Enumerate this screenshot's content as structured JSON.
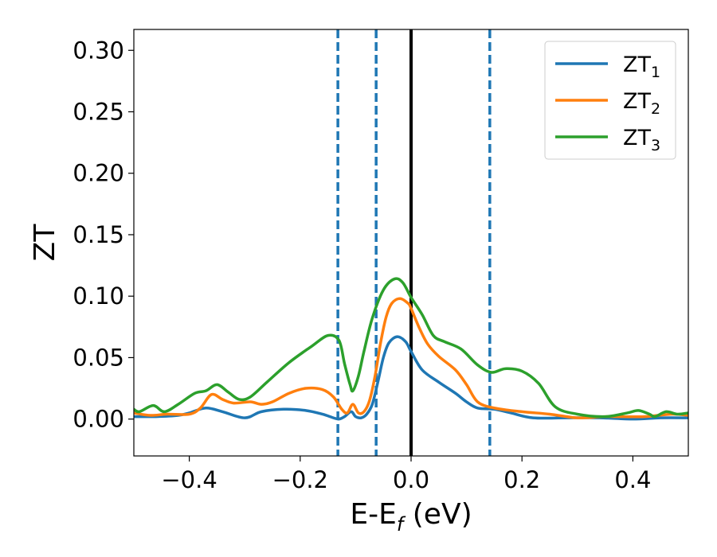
{
  "chart_data": {
    "type": "line",
    "xlabel_main": "E-E",
    "xlabel_sub": "f",
    "xlabel_unit": " (eV)",
    "ylabel": "ZT",
    "xlim": [
      -0.5,
      0.5
    ],
    "ylim": [
      -0.03,
      0.317
    ],
    "xticks": [
      -0.4,
      -0.2,
      0.0,
      0.2,
      0.4
    ],
    "xtick_labels": [
      "−0.4",
      "−0.2",
      "0.0",
      "0.2",
      "0.4"
    ],
    "yticks": [
      0.0,
      0.05,
      0.1,
      0.15,
      0.2,
      0.25,
      0.3
    ],
    "ytick_labels": [
      "0.00",
      "0.05",
      "0.10",
      "0.15",
      "0.20",
      "0.25",
      "0.30"
    ],
    "legend_position": "top-right",
    "vertical_lines": [
      {
        "x": -0.132,
        "style": "dashed",
        "color": "#1f77b4"
      },
      {
        "x": -0.063,
        "style": "dashed",
        "color": "#1f77b4"
      },
      {
        "x": 0.0,
        "style": "solid",
        "color": "#000000"
      },
      {
        "x": 0.142,
        "style": "dashed",
        "color": "#1f77b4"
      }
    ],
    "series": [
      {
        "name_main": "ZT",
        "name_sub": "1",
        "color": "#1f77b4",
        "points": [
          [
            -0.5,
            0.002
          ],
          [
            -0.46,
            0.002
          ],
          [
            -0.42,
            0.003
          ],
          [
            -0.4,
            0.005
          ],
          [
            -0.37,
            0.009
          ],
          [
            -0.34,
            0.006
          ],
          [
            -0.3,
            0.001
          ],
          [
            -0.27,
            0.006
          ],
          [
            -0.23,
            0.008
          ],
          [
            -0.19,
            0.007
          ],
          [
            -0.16,
            0.004
          ],
          [
            -0.14,
            0.001
          ],
          [
            -0.13,
            0.0
          ],
          [
            -0.12,
            0.002
          ],
          [
            -0.108,
            0.006
          ],
          [
            -0.1,
            0.002
          ],
          [
            -0.09,
            0.001
          ],
          [
            -0.08,
            0.004
          ],
          [
            -0.07,
            0.012
          ],
          [
            -0.06,
            0.03
          ],
          [
            -0.05,
            0.05
          ],
          [
            -0.04,
            0.062
          ],
          [
            -0.025,
            0.067
          ],
          [
            -0.01,
            0.063
          ],
          [
            0.0,
            0.055
          ],
          [
            0.02,
            0.04
          ],
          [
            0.05,
            0.03
          ],
          [
            0.08,
            0.021
          ],
          [
            0.1,
            0.014
          ],
          [
            0.12,
            0.009
          ],
          [
            0.15,
            0.008
          ],
          [
            0.18,
            0.005
          ],
          [
            0.22,
            0.001
          ],
          [
            0.28,
            0.001
          ],
          [
            0.34,
            0.001
          ],
          [
            0.4,
            0.0
          ],
          [
            0.45,
            0.001
          ],
          [
            0.5,
            0.001
          ]
        ]
      },
      {
        "name_main": "ZT",
        "name_sub": "2",
        "color": "#ff7f0e",
        "points": [
          [
            -0.5,
            0.005
          ],
          [
            -0.47,
            0.003
          ],
          [
            -0.44,
            0.004
          ],
          [
            -0.4,
            0.004
          ],
          [
            -0.38,
            0.009
          ],
          [
            -0.36,
            0.02
          ],
          [
            -0.34,
            0.016
          ],
          [
            -0.32,
            0.013
          ],
          [
            -0.29,
            0.014
          ],
          [
            -0.27,
            0.012
          ],
          [
            -0.25,
            0.014
          ],
          [
            -0.22,
            0.021
          ],
          [
            -0.19,
            0.025
          ],
          [
            -0.16,
            0.024
          ],
          [
            -0.14,
            0.018
          ],
          [
            -0.125,
            0.008
          ],
          [
            -0.115,
            0.005
          ],
          [
            -0.105,
            0.012
          ],
          [
            -0.095,
            0.005
          ],
          [
            -0.085,
            0.006
          ],
          [
            -0.075,
            0.015
          ],
          [
            -0.065,
            0.035
          ],
          [
            -0.055,
            0.062
          ],
          [
            -0.045,
            0.083
          ],
          [
            -0.035,
            0.094
          ],
          [
            -0.02,
            0.098
          ],
          [
            -0.005,
            0.094
          ],
          [
            0.0,
            0.09
          ],
          [
            0.015,
            0.074
          ],
          [
            0.03,
            0.061
          ],
          [
            0.05,
            0.051
          ],
          [
            0.08,
            0.04
          ],
          [
            0.1,
            0.028
          ],
          [
            0.12,
            0.014
          ],
          [
            0.15,
            0.009
          ],
          [
            0.2,
            0.006
          ],
          [
            0.25,
            0.004
          ],
          [
            0.3,
            0.001
          ],
          [
            0.35,
            0.002
          ],
          [
            0.42,
            0.002
          ],
          [
            0.47,
            0.004
          ],
          [
            0.5,
            0.003
          ]
        ]
      },
      {
        "name_main": "ZT",
        "name_sub": "3",
        "color": "#2ca02c",
        "points": [
          [
            -0.5,
            0.008
          ],
          [
            -0.49,
            0.006
          ],
          [
            -0.465,
            0.011
          ],
          [
            -0.445,
            0.006
          ],
          [
            -0.42,
            0.012
          ],
          [
            -0.39,
            0.021
          ],
          [
            -0.37,
            0.023
          ],
          [
            -0.35,
            0.028
          ],
          [
            -0.33,
            0.022
          ],
          [
            -0.31,
            0.016
          ],
          [
            -0.29,
            0.018
          ],
          [
            -0.26,
            0.03
          ],
          [
            -0.22,
            0.046
          ],
          [
            -0.18,
            0.059
          ],
          [
            -0.15,
            0.068
          ],
          [
            -0.13,
            0.064
          ],
          [
            -0.12,
            0.045
          ],
          [
            -0.11,
            0.028
          ],
          [
            -0.105,
            0.023
          ],
          [
            -0.095,
            0.035
          ],
          [
            -0.085,
            0.055
          ],
          [
            -0.07,
            0.082
          ],
          [
            -0.05,
            0.105
          ],
          [
            -0.03,
            0.114
          ],
          [
            -0.015,
            0.111
          ],
          [
            0.0,
            0.099
          ],
          [
            0.02,
            0.085
          ],
          [
            0.04,
            0.068
          ],
          [
            0.06,
            0.063
          ],
          [
            0.09,
            0.057
          ],
          [
            0.12,
            0.044
          ],
          [
            0.145,
            0.038
          ],
          [
            0.17,
            0.041
          ],
          [
            0.2,
            0.039
          ],
          [
            0.23,
            0.029
          ],
          [
            0.26,
            0.01
          ],
          [
            0.3,
            0.004
          ],
          [
            0.35,
            0.002
          ],
          [
            0.39,
            0.005
          ],
          [
            0.41,
            0.007
          ],
          [
            0.43,
            0.004
          ],
          [
            0.44,
            0.002
          ],
          [
            0.46,
            0.006
          ],
          [
            0.48,
            0.004
          ],
          [
            0.5,
            0.005
          ]
        ]
      }
    ]
  }
}
